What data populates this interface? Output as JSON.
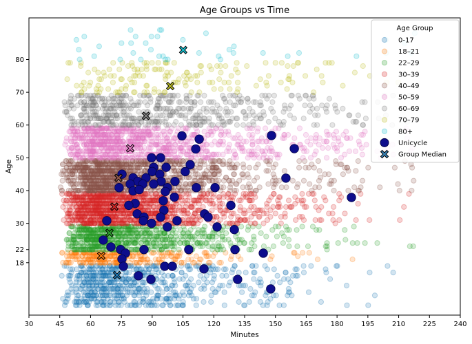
{
  "chart_data": {
    "type": "scatter",
    "title": "Age Groups vs Time",
    "xlabel": "Minutes",
    "ylabel": "Age",
    "xlim": [
      30,
      240
    ],
    "ylim": [
      2,
      92.7
    ],
    "xticks": [
      30,
      45,
      60,
      75,
      90,
      105,
      120,
      135,
      150,
      165,
      180,
      195,
      210,
      225,
      240
    ],
    "yticks": [
      18,
      22,
      30,
      40,
      50,
      60,
      70,
      80
    ],
    "grid": false,
    "legend": {
      "title": "Age Group",
      "placement": "top-right",
      "entries": [
        "0-17",
        "18–21",
        "22–29",
        "30–39",
        "40–49",
        "50–59",
        "60–69",
        "70–79",
        "80+",
        "Unicycle",
        "Group Median"
      ]
    },
    "groups": [
      {
        "name": "0-17",
        "color": "#1f77b4",
        "median": [
          72.9,
          14.2
        ]
      },
      {
        "name": "18–21",
        "color": "#ff7f0e",
        "median": [
          65.2,
          20.1
        ]
      },
      {
        "name": "22–29",
        "color": "#2ca02c",
        "median": [
          69.2,
          27.1
        ]
      },
      {
        "name": "30–39",
        "color": "#d62728",
        "median": [
          71.6,
          35.1
        ]
      },
      {
        "name": "40–49",
        "color": "#8c564b",
        "median": [
          73.6,
          43.9
        ]
      },
      {
        "name": "50–59",
        "color": "#e377c2",
        "median": [
          79.3,
          52.9
        ]
      },
      {
        "name": "60–69",
        "color": "#7f7f7f",
        "median": [
          87.0,
          62.8
        ]
      },
      {
        "name": "70–79",
        "color": "#bcbd22",
        "median": [
          98.8,
          71.9
        ]
      },
      {
        "name": "80+",
        "color": "#17becf",
        "median": [
          105.1,
          82.9
        ]
      }
    ],
    "unicycle": {
      "name": "Unicycle",
      "color": "#0d0d8c",
      "points": [
        [
          104.5,
          56.7
        ],
        [
          112.9,
          55.7
        ],
        [
          111.2,
          52.7
        ],
        [
          89.7,
          50.0
        ],
        [
          94.1,
          50.0
        ],
        [
          108.5,
          47.9
        ],
        [
          90.7,
          47.1
        ],
        [
          96.8,
          47.1
        ],
        [
          106.1,
          45.8
        ],
        [
          90.0,
          45.8
        ],
        [
          75.3,
          45.0
        ],
        [
          93.7,
          45.0
        ],
        [
          80.7,
          43.9
        ],
        [
          87.0,
          43.9
        ],
        [
          94.4,
          42.8
        ],
        [
          101.1,
          42.8
        ],
        [
          83.0,
          42.8
        ],
        [
          79.3,
          42.0
        ],
        [
          85.4,
          42.0
        ],
        [
          90.7,
          42.0
        ],
        [
          73.9,
          40.9
        ],
        [
          111.5,
          40.9
        ],
        [
          120.6,
          40.9
        ],
        [
          97.4,
          40.9
        ],
        [
          80.7,
          39.9
        ],
        [
          83.7,
          40.3
        ],
        [
          96.4,
          39.7
        ],
        [
          100.8,
          38.0
        ],
        [
          95.4,
          36.9
        ],
        [
          81.7,
          36.1
        ],
        [
          78.6,
          35.5
        ],
        [
          128.3,
          35.5
        ],
        [
          95.7,
          34.0
        ],
        [
          82.7,
          32.9
        ],
        [
          86.0,
          31.9
        ],
        [
          85.7,
          30.8
        ],
        [
          94.1,
          31.9
        ],
        [
          89.7,
          30.0
        ],
        [
          102.1,
          30.8
        ],
        [
          115.5,
          32.9
        ],
        [
          117.2,
          31.9
        ],
        [
          97.4,
          28.9
        ],
        [
          67.9,
          30.8
        ],
        [
          121.6,
          28.9
        ],
        [
          130.0,
          28.1
        ],
        [
          66.2,
          24.9
        ],
        [
          69.9,
          22.8
        ],
        [
          74.6,
          22.0
        ],
        [
          77.0,
          20.9
        ],
        [
          86.0,
          22.0
        ],
        [
          107.8,
          22.0
        ],
        [
          130.3,
          22.0
        ],
        [
          75.3,
          19.1
        ],
        [
          76.0,
          16.9
        ],
        [
          96.1,
          16.9
        ],
        [
          99.8,
          16.9
        ],
        [
          115.2,
          16.1
        ],
        [
          83.3,
          14.0
        ],
        [
          89.4,
          12.9
        ],
        [
          131.6,
          12.9
        ],
        [
          148.1,
          56.8
        ],
        [
          159.2,
          52.8
        ],
        [
          155.1,
          43.8
        ],
        [
          187.0,
          37.9
        ],
        [
          144.1,
          20.9
        ],
        [
          147.7,
          10.0
        ]
      ]
    }
  }
}
